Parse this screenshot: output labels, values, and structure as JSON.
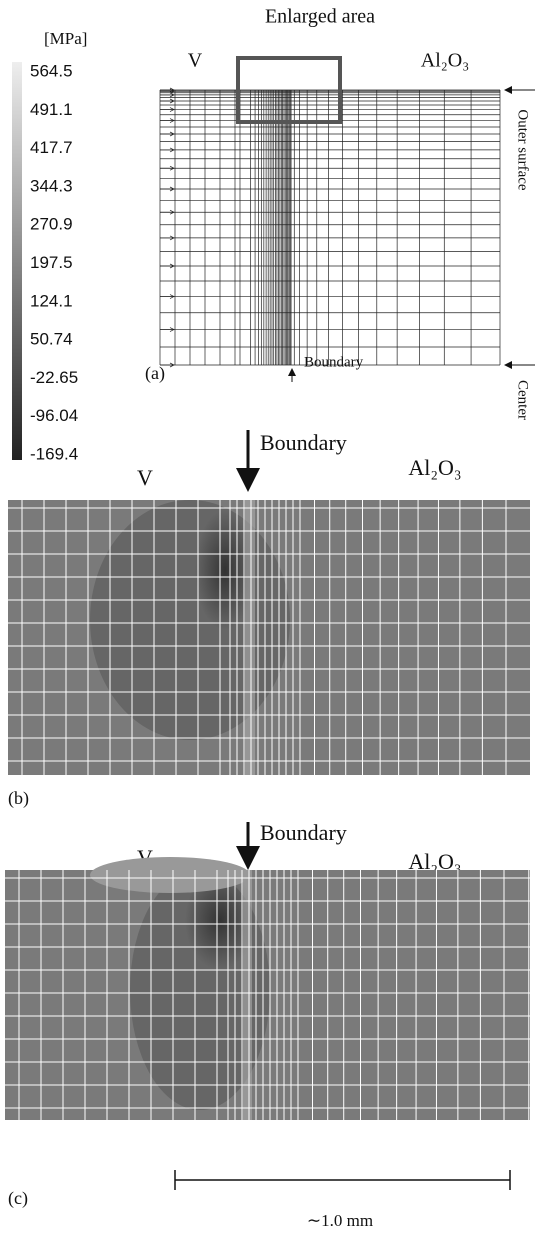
{
  "colorbar": {
    "unit": "[MPa]",
    "labels": [
      "564.5",
      "491.1",
      "417.7",
      "344.3",
      "270.9",
      "197.5",
      "124.1",
      "50.74",
      "-22.65",
      "-96.04",
      "-169.4"
    ]
  },
  "panel_a": {
    "title": "Enlarged area",
    "left_material": "V",
    "right_material": "Al₂O₃",
    "outer_label": "Outer surface",
    "center_label": "Center",
    "boundary_label": "Boundary",
    "tag": "(a)"
  },
  "panel_b": {
    "boundary_label": "Boundary",
    "left_material": "V",
    "right_material": "Al₂O₃",
    "tag": "(b)"
  },
  "panel_c": {
    "boundary_label": "Boundary",
    "left_material": "V",
    "right_material": "Al₂O₃",
    "tag": "(c)",
    "scale_label": "∼1.0 mm"
  }
}
